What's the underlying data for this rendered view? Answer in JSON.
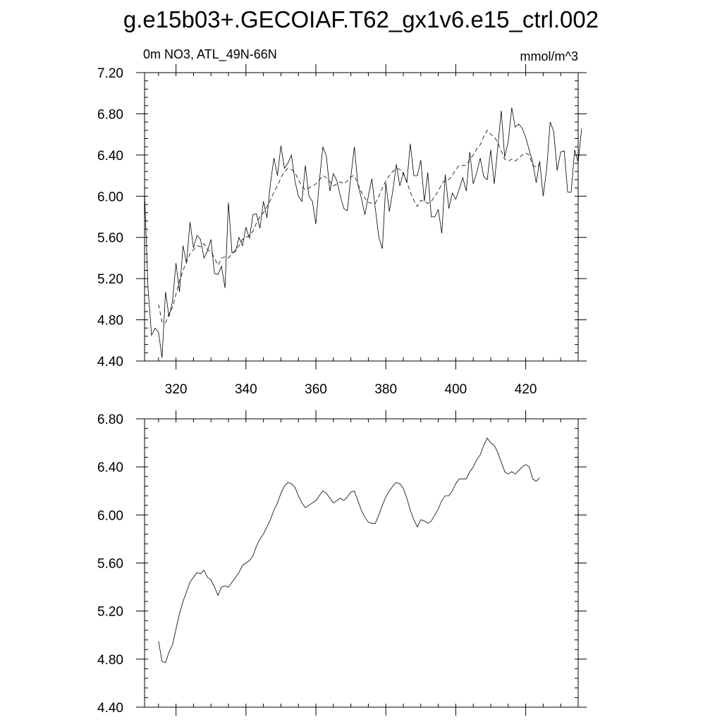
{
  "title": "g.e15b03+.GECOIAF.T62_gx1v6.e15_ctrl.002",
  "chart_data": [
    {
      "type": "line",
      "left_label": "0m NO3, ATL_49N-66N",
      "right_label": "mmol/m^3",
      "xlim": [
        311,
        435
      ],
      "ylim": [
        4.4,
        7.2
      ],
      "xticks": [
        {
          "value": 320,
          "label": "320"
        },
        {
          "value": 340,
          "label": "340"
        },
        {
          "value": 360,
          "label": "360"
        },
        {
          "value": 380,
          "label": "380"
        },
        {
          "value": 400,
          "label": "400"
        },
        {
          "value": 420,
          "label": "420"
        }
      ],
      "yticks": [
        {
          "value": 4.4,
          "label": "4.40"
        },
        {
          "value": 4.8,
          "label": "4.80"
        },
        {
          "value": 5.2,
          "label": "5.20"
        },
        {
          "value": 5.6,
          "label": "5.60"
        },
        {
          "value": 6.0,
          "label": "6.00"
        },
        {
          "value": 6.4,
          "label": "6.40"
        },
        {
          "value": 6.8,
          "label": "6.80"
        },
        {
          "value": 7.2,
          "label": "7.20"
        }
      ],
      "series": [
        {
          "style": "solid",
          "x0": 311,
          "dx": 1,
          "values": [
            6.03,
            5.1,
            4.65,
            4.72,
            4.68,
            4.43,
            5.07,
            4.83,
            4.98,
            5.35,
            5.07,
            5.52,
            5.35,
            5.75,
            5.5,
            5.62,
            5.58,
            5.4,
            5.47,
            5.58,
            5.25,
            5.24,
            5.32,
            5.11,
            5.94,
            5.45,
            5.46,
            5.6,
            5.52,
            5.7,
            5.59,
            5.82,
            5.83,
            5.69,
            5.95,
            5.79,
            6.12,
            6.37,
            6.2,
            6.49,
            6.27,
            6.32,
            6.4,
            6.15,
            6.0,
            5.95,
            6.3,
            6.0,
            5.95,
            5.73,
            6.15,
            6.48,
            6.39,
            6.05,
            6.22,
            6.15,
            6.0,
            5.88,
            5.86,
            6.19,
            6.48,
            6.12,
            5.98,
            5.82,
            6.0,
            6.17,
            5.88,
            5.6,
            5.49,
            6.13,
            5.85,
            6.05,
            6.31,
            6.1,
            6.23,
            6.13,
            6.51,
            6.2,
            6.2,
            6.35,
            5.95,
            6.23,
            5.8,
            5.8,
            5.87,
            5.64,
            6.21,
            5.88,
            6.03,
            5.97,
            6.07,
            6.18,
            6.05,
            6.43,
            6.12,
            6.23,
            6.37,
            6.19,
            6.16,
            6.45,
            6.12,
            6.47,
            6.83,
            6.38,
            6.53,
            6.86,
            6.67,
            6.7,
            6.66,
            6.57,
            6.45,
            6.33,
            6.13,
            6.34,
            6.0,
            6.27,
            6.72,
            6.63,
            6.25,
            6.43,
            6.44,
            6.04,
            6.04,
            6.45,
            6.33,
            6.66
          ]
        },
        {
          "style": "dashed",
          "x0": 315,
          "dx": 1,
          "values": [
            4.95,
            4.78,
            4.77,
            4.86,
            4.92,
            5.05,
            5.18,
            5.28,
            5.36,
            5.44,
            5.48,
            5.52,
            5.51,
            5.54,
            5.48,
            5.46,
            5.4,
            5.33,
            5.4,
            5.41,
            5.4,
            5.44,
            5.48,
            5.52,
            5.58,
            5.6,
            5.62,
            5.66,
            5.74,
            5.8,
            5.84,
            5.9,
            5.96,
            6.04,
            6.1,
            6.18,
            6.24,
            6.27,
            6.26,
            6.23,
            6.16,
            6.1,
            6.06,
            6.08,
            6.1,
            6.12,
            6.16,
            6.2,
            6.18,
            6.14,
            6.1,
            6.12,
            6.14,
            6.12,
            6.15,
            6.19,
            6.2,
            6.12,
            6.04,
            5.98,
            5.94,
            5.93,
            5.93,
            6.0,
            6.08,
            6.15,
            6.2,
            6.24,
            6.27,
            6.26,
            6.22,
            6.14,
            6.04,
            5.96,
            5.9,
            5.96,
            5.95,
            5.93,
            5.95,
            6.0,
            6.05,
            6.12,
            6.16,
            6.16,
            6.2,
            6.26,
            6.3,
            6.3,
            6.3,
            6.36,
            6.4,
            6.46,
            6.5,
            6.58,
            6.64,
            6.6,
            6.58,
            6.52,
            6.44,
            6.36,
            6.34,
            6.36,
            6.34,
            6.37,
            6.4,
            6.42,
            6.4,
            6.3,
            6.28,
            6.31
          ]
        }
      ]
    },
    {
      "type": "line",
      "xlim": [
        311,
        435
      ],
      "ylim": [
        4.4,
        6.8
      ],
      "xticks": [
        {
          "value": 320,
          "label": ""
        },
        {
          "value": 340,
          "label": ""
        },
        {
          "value": 360,
          "label": ""
        },
        {
          "value": 380,
          "label": ""
        },
        {
          "value": 400,
          "label": ""
        },
        {
          "value": 420,
          "label": ""
        }
      ],
      "yticks": [
        {
          "value": 4.4,
          "label": "4.40"
        },
        {
          "value": 4.8,
          "label": "4.80"
        },
        {
          "value": 5.2,
          "label": "5.20"
        },
        {
          "value": 5.6,
          "label": "5.60"
        },
        {
          "value": 6.0,
          "label": "6.00"
        },
        {
          "value": 6.4,
          "label": "6.40"
        },
        {
          "value": 6.8,
          "label": "6.80"
        }
      ],
      "series": [
        {
          "style": "solid",
          "x0": 315,
          "dx": 1,
          "values": [
            4.95,
            4.78,
            4.77,
            4.86,
            4.92,
            5.05,
            5.18,
            5.28,
            5.36,
            5.44,
            5.48,
            5.52,
            5.51,
            5.54,
            5.48,
            5.46,
            5.4,
            5.33,
            5.4,
            5.41,
            5.4,
            5.44,
            5.48,
            5.52,
            5.58,
            5.6,
            5.62,
            5.66,
            5.74,
            5.8,
            5.84,
            5.9,
            5.96,
            6.04,
            6.1,
            6.18,
            6.24,
            6.27,
            6.26,
            6.23,
            6.16,
            6.1,
            6.06,
            6.08,
            6.1,
            6.12,
            6.16,
            6.2,
            6.18,
            6.14,
            6.1,
            6.12,
            6.14,
            6.12,
            6.15,
            6.19,
            6.2,
            6.12,
            6.04,
            5.98,
            5.94,
            5.93,
            5.93,
            6.0,
            6.08,
            6.15,
            6.2,
            6.24,
            6.27,
            6.26,
            6.22,
            6.14,
            6.04,
            5.96,
            5.9,
            5.96,
            5.95,
            5.93,
            5.95,
            6.0,
            6.05,
            6.12,
            6.16,
            6.16,
            6.2,
            6.26,
            6.3,
            6.3,
            6.3,
            6.36,
            6.4,
            6.46,
            6.5,
            6.58,
            6.64,
            6.6,
            6.58,
            6.52,
            6.44,
            6.36,
            6.34,
            6.36,
            6.34,
            6.37,
            6.4,
            6.42,
            6.4,
            6.3,
            6.28,
            6.31
          ]
        }
      ]
    }
  ]
}
